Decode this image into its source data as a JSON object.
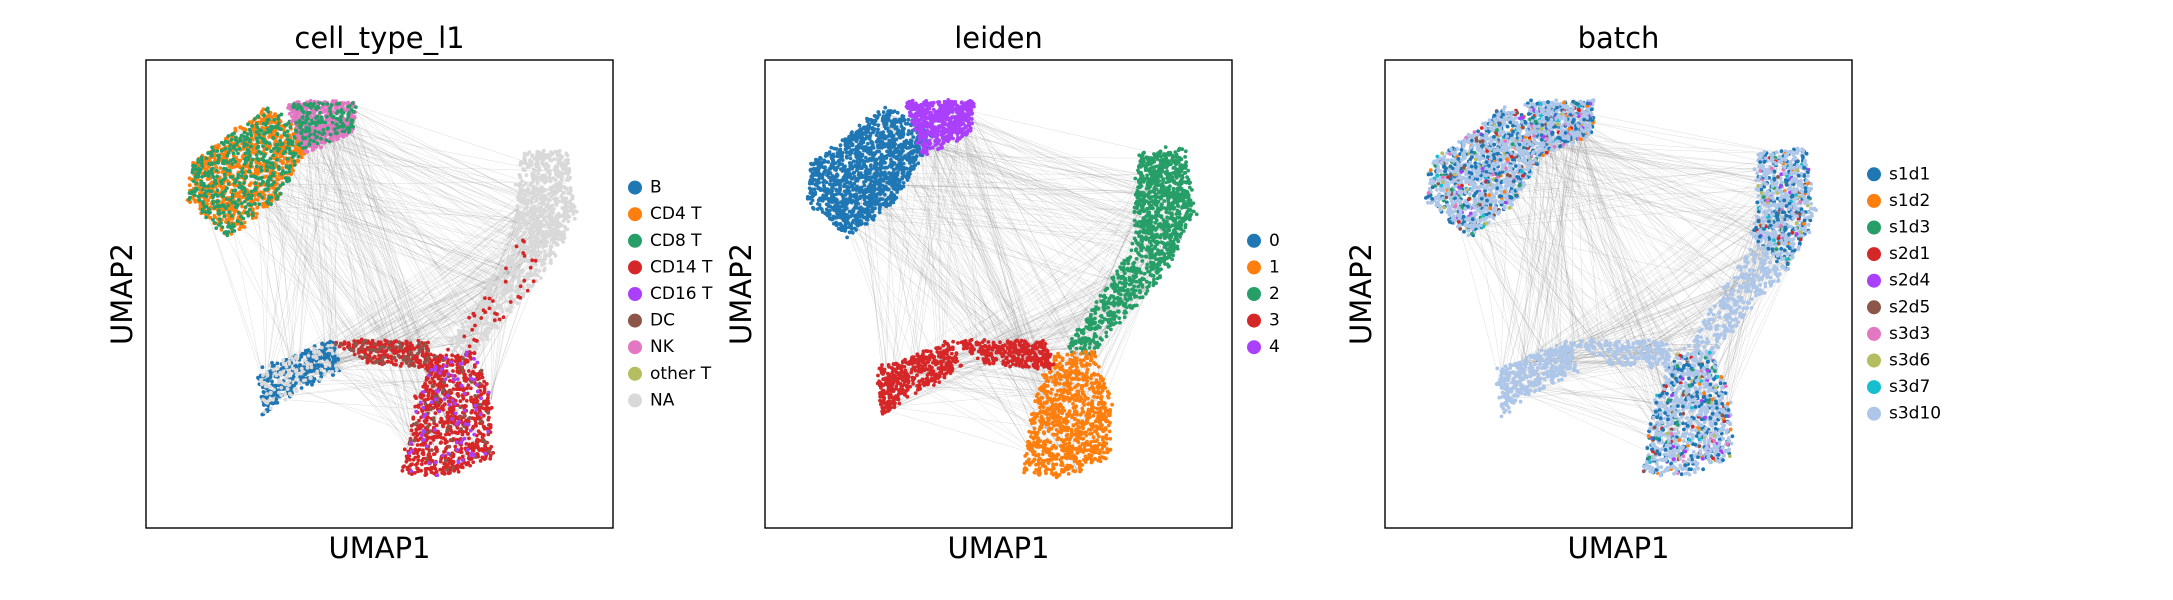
{
  "chart_data": [
    {
      "type": "scatter",
      "title": "cell_type_l1",
      "xlabel": "UMAP1",
      "ylabel": "UMAP2",
      "legend_position": "right",
      "legend": [
        {
          "label": "B",
          "color": "#1f77b4"
        },
        {
          "label": "CD4 T",
          "color": "#ff7f0e"
        },
        {
          "label": "CD8 T",
          "color": "#279e68"
        },
        {
          "label": "CD14 T",
          "color": "#d62728"
        },
        {
          "label": "CD16 T",
          "color": "#aa40fc"
        },
        {
          "label": "DC",
          "color": "#8c564b"
        },
        {
          "label": "NK",
          "color": "#e377c2"
        },
        {
          "label": "other T",
          "color": "#b5bd61"
        },
        {
          "label": "NA",
          "color": "#d9d9d9"
        }
      ]
    },
    {
      "type": "scatter",
      "title": "leiden",
      "xlabel": "UMAP1",
      "ylabel": "UMAP2",
      "legend_position": "right",
      "legend": [
        {
          "label": "0",
          "color": "#1f77b4"
        },
        {
          "label": "1",
          "color": "#ff7f0e"
        },
        {
          "label": "2",
          "color": "#279e68"
        },
        {
          "label": "3",
          "color": "#d62728"
        },
        {
          "label": "4",
          "color": "#aa40fc"
        }
      ]
    },
    {
      "type": "scatter",
      "title": "batch",
      "xlabel": "UMAP1",
      "ylabel": "UMAP2",
      "legend_position": "right",
      "legend": [
        {
          "label": "s1d1",
          "color": "#1f77b4"
        },
        {
          "label": "s1d2",
          "color": "#ff7f0e"
        },
        {
          "label": "s1d3",
          "color": "#279e68"
        },
        {
          "label": "s2d1",
          "color": "#d62728"
        },
        {
          "label": "s2d4",
          "color": "#aa40fc"
        },
        {
          "label": "s2d5",
          "color": "#8c564b"
        },
        {
          "label": "s3d3",
          "color": "#e377c2"
        },
        {
          "label": "s3d6",
          "color": "#b5bd61"
        },
        {
          "label": "s3d7",
          "color": "#17becf"
        },
        {
          "label": "s3d10",
          "color": "#aec7e8"
        }
      ]
    }
  ],
  "edge_color": "#808080"
}
